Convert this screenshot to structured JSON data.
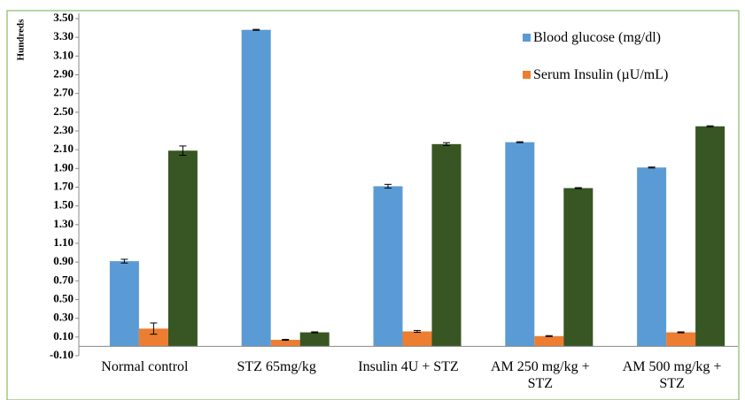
{
  "chart_data": {
    "type": "bar",
    "y_label": "Hundreds",
    "categories": [
      "Normal control",
      "STZ 65mg/kg",
      "Insulin 4U + STZ",
      "AM 250 mg/kg + STZ",
      "AM 500 mg/kg + STZ"
    ],
    "series": [
      {
        "name": "Blood glucose (mg/dl)",
        "color": "#5b9bd5",
        "values": [
          0.91,
          3.38,
          1.71,
          2.18,
          1.91
        ],
        "errors": [
          0.02,
          0.005,
          0.02,
          0.005,
          0.005
        ]
      },
      {
        "name": "Serum Insulin (µU/mL)",
        "color": "#ed7d31",
        "values": [
          0.19,
          0.07,
          0.16,
          0.11,
          0.15
        ],
        "errors": [
          0.06,
          0.005,
          0.01,
          0.005,
          0.005
        ]
      },
      {
        "color": "#375623",
        "values": [
          2.09,
          0.15,
          2.16,
          1.69,
          2.35
        ],
        "errors": [
          0.05,
          0.005,
          0.015,
          0.005,
          0.005
        ]
      }
    ],
    "ylim": [
      -0.1,
      3.5
    ],
    "yticks": [
      {
        "value": -0.1,
        "label": "-0.10"
      },
      {
        "value": 0.1,
        "label": "0.10"
      },
      {
        "value": 0.3,
        "label": "0.30"
      },
      {
        "value": 0.5,
        "label": "0.50"
      },
      {
        "value": 0.7,
        "label": "0.70"
      },
      {
        "value": 0.9,
        "label": "0.90"
      },
      {
        "value": 1.1,
        "label": "1.10"
      },
      {
        "value": 1.3,
        "label": "1.30"
      },
      {
        "value": 1.5,
        "label": "1.50"
      },
      {
        "value": 1.7,
        "label": "1.70"
      },
      {
        "value": 1.9,
        "label": "1.90"
      },
      {
        "value": 2.1,
        "label": "2.10"
      },
      {
        "value": 2.3,
        "label": "2.30"
      },
      {
        "value": 2.5,
        "label": "2.50"
      },
      {
        "value": 2.7,
        "label": "2.70"
      },
      {
        "value": 2.9,
        "label": "2.90"
      },
      {
        "value": 3.1,
        "label": "3.10"
      },
      {
        "value": 3.3,
        "label": "3.30"
      },
      {
        "value": 3.5,
        "label": "3.50"
      }
    ],
    "legend": "top-right"
  }
}
